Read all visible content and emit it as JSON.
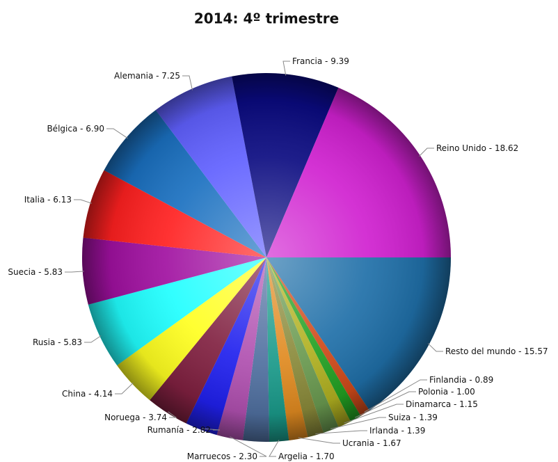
{
  "chart_data": {
    "type": "pie",
    "title": "2014: 4º trimestre",
    "label_separator": " - ",
    "categories": [
      "Resto del mundo",
      "Finlandia",
      "Polonia",
      "Dinamarca",
      "Suiza",
      "Irlanda",
      "Ucrania",
      "Argelia",
      null,
      "Marruecos",
      "Rumanía",
      "Noruega",
      "China",
      "Rusia",
      "Suecia",
      "Italia",
      "Bélgica",
      "Alemania",
      "Francia",
      "Reino Unido"
    ],
    "values": [
      15.57,
      0.89,
      1.0,
      1.15,
      1.39,
      1.39,
      1.67,
      1.7,
      2.29,
      2.3,
      2.82,
      3.74,
      4.14,
      5.83,
      5.83,
      6.13,
      6.9,
      7.25,
      9.39,
      18.62
    ],
    "value_labels": [
      "15.57",
      "0.89",
      "1.00",
      "1.15",
      "1.39",
      "1.39",
      "1.67",
      "1.70",
      null,
      "2.30",
      "2.82",
      "3.74",
      "4.14",
      "5.83",
      "5.83",
      "6.13",
      "6.90",
      "7.25",
      "9.39",
      "18.62"
    ],
    "colors": [
      "#1f6fa8",
      "#d04a1a",
      "#22a022",
      "#b0b020",
      "#6a9a50",
      "#8a8a3a",
      "#e08a20",
      "#1a9a8a",
      "#5070a0",
      "#b050b0",
      "#2020ee",
      "#802040",
      "#ffff20",
      "#20ffff",
      "#a010a0",
      "#ff2020",
      "#1a70c0",
      "#6060ff",
      "#0a0a80",
      "#d020d0"
    ]
  }
}
